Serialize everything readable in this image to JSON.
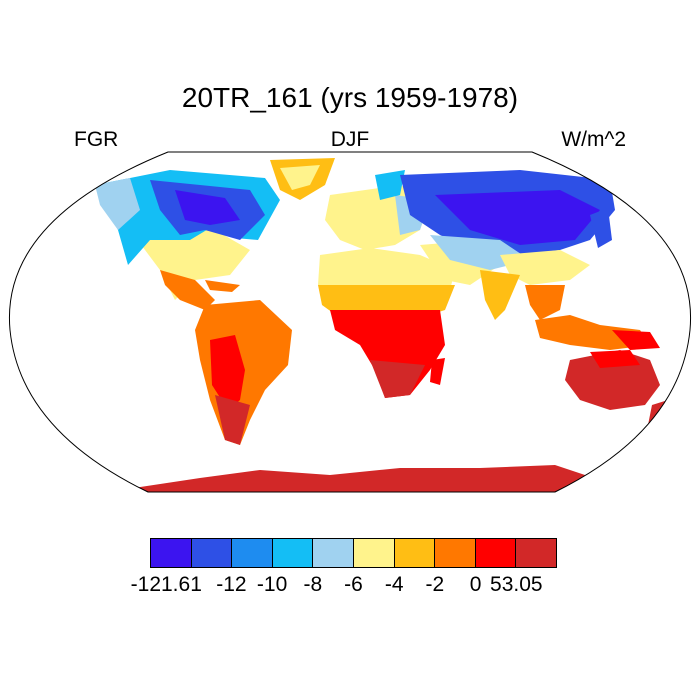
{
  "title": "20TR_161 (yrs 1959-1978)",
  "subtitle_left": "FGR",
  "subtitle_center": "DJF",
  "subtitle_right": "W/m^2",
  "colorbar": {
    "colors": [
      "#3c14f0",
      "#2e50e6",
      "#1e8cf0",
      "#14bef5",
      "#a0d2f0",
      "#fff38c",
      "#ffbe14",
      "#ff7800",
      "#ff0000",
      "#d22828"
    ],
    "tick_labels": [
      "-121.61",
      "-12",
      "-10",
      "-8",
      "-6",
      "-4",
      "-2",
      "0",
      "53.05"
    ]
  },
  "map": {
    "projection": "robinson",
    "land_outline_color": "#000000",
    "ocean_color": "#ffffff"
  }
}
